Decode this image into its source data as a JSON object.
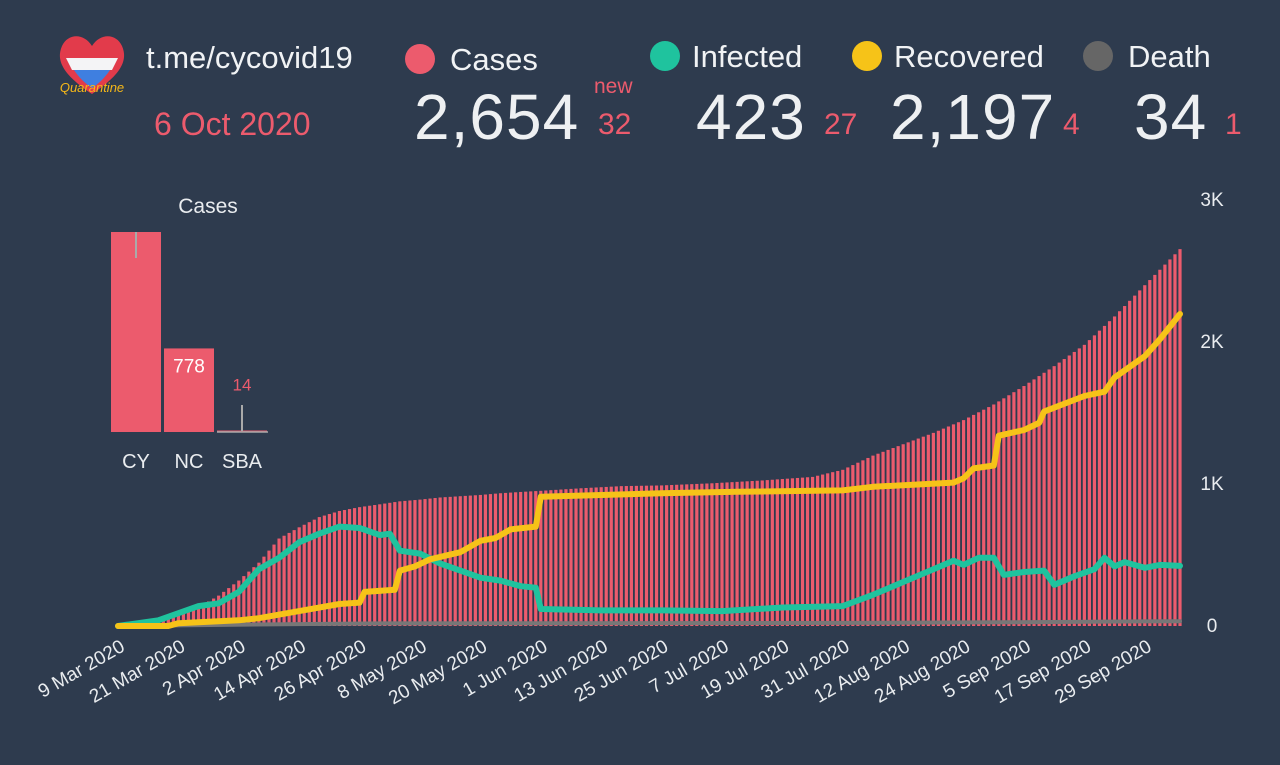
{
  "header": {
    "channel": "t.me/cycovid19",
    "date": "6 Oct 2020",
    "new_label": "new"
  },
  "stats": [
    {
      "key": "cases",
      "label": "Cases",
      "value": "2,654",
      "delta": "32",
      "color": "#ec5b6d"
    },
    {
      "key": "infected",
      "label": "Infected",
      "value": "423",
      "delta": "27",
      "color": "#1fc39e"
    },
    {
      "key": "recovered",
      "label": "Recovered",
      "value": "2,197",
      "delta": "4",
      "color": "#f6c318"
    },
    {
      "key": "death",
      "label": "Death",
      "value": "34",
      "delta": "1",
      "color": "#777777"
    }
  ],
  "colors": {
    "background": "#2e3b4e",
    "cases": "#ec5b6d",
    "infected": "#1fc39e",
    "recovered": "#f6c318",
    "death": "#777777"
  },
  "logo": {
    "icon": "heart-flag-logo",
    "text": "Quarantine"
  },
  "chart_data": [
    {
      "type": "bar",
      "title": "Cases",
      "categories": [
        "CY",
        "NC",
        "SBA"
      ],
      "values": [
        1862,
        778,
        14
      ],
      "value_labels": [
        "",
        "778",
        "14"
      ],
      "legend": "none"
    },
    {
      "type": "bar+line",
      "x_start": "9 Mar 2020",
      "x_end": "6 Oct 2020",
      "x_tick_labels": [
        "9 Mar 2020",
        "21 Mar 2020",
        "2 Apr 2020",
        "14 Apr 2020",
        "26 Apr 2020",
        "8 May 2020",
        "20 May 2020",
        "1 Jun 2020",
        "13 Jun 2020",
        "25 Jun 2020",
        "7 Jul 2020",
        "19 Jul 2020",
        "31 Jul 2020",
        "12 Aug 2020",
        "24 Aug 2020",
        "5 Sep 2020",
        "17 Sep 2020",
        "29 Sep 2020"
      ],
      "y_tick_labels": [
        "0",
        "1K",
        "2K",
        "3K"
      ],
      "ylim": [
        0,
        3000
      ],
      "y_axis_side": "right",
      "grid": false,
      "series": [
        {
          "name": "Cases",
          "render": "bars",
          "color": "#ec5b6d",
          "points": [
            [
              "2020-03-09",
              2
            ],
            [
              "2020-03-13",
              20
            ],
            [
              "2020-03-17",
              58
            ],
            [
              "2020-03-21",
              95
            ],
            [
              "2020-03-25",
              132
            ],
            [
              "2020-03-29",
              214
            ],
            [
              "2020-04-02",
              320
            ],
            [
              "2020-04-06",
              446
            ],
            [
              "2020-04-10",
              616
            ],
            [
              "2020-04-14",
              695
            ],
            [
              "2020-04-18",
              767
            ],
            [
              "2020-04-22",
              810
            ],
            [
              "2020-04-26",
              837
            ],
            [
              "2020-04-30",
              857
            ],
            [
              "2020-05-04",
              878
            ],
            [
              "2020-05-08",
              890
            ],
            [
              "2020-05-12",
              905
            ],
            [
              "2020-05-16",
              914
            ],
            [
              "2020-05-20",
              923
            ],
            [
              "2020-05-24",
              935
            ],
            [
              "2020-05-28",
              944
            ],
            [
              "2020-06-01",
              952
            ],
            [
              "2020-06-09",
              970
            ],
            [
              "2020-06-17",
              985
            ],
            [
              "2020-06-25",
              990
            ],
            [
              "2020-07-05",
              1005
            ],
            [
              "2020-07-15",
              1025
            ],
            [
              "2020-07-25",
              1050
            ],
            [
              "2020-07-31",
              1100
            ],
            [
              "2020-08-06",
              1200
            ],
            [
              "2020-08-12",
              1280
            ],
            [
              "2020-08-18",
              1360
            ],
            [
              "2020-08-24",
              1450
            ],
            [
              "2020-08-30",
              1560
            ],
            [
              "2020-09-05",
              1690
            ],
            [
              "2020-09-11",
              1830
            ],
            [
              "2020-09-17",
              1980
            ],
            [
              "2020-09-23",
              2180
            ],
            [
              "2020-09-29",
              2400
            ],
            [
              "2020-10-06",
              2654
            ]
          ]
        },
        {
          "name": "Recovered",
          "render": "line",
          "color": "#f6c318",
          "points": [
            [
              "2020-03-09",
              0
            ],
            [
              "2020-03-19",
              0
            ],
            [
              "2020-03-21",
              20
            ],
            [
              "2020-03-27",
              30
            ],
            [
              "2020-04-02",
              40
            ],
            [
              "2020-04-06",
              55
            ],
            [
              "2020-04-14",
              105
            ],
            [
              "2020-04-22",
              155
            ],
            [
              "2020-04-26",
              165
            ],
            [
              "2020-04-27",
              240
            ],
            [
              "2020-05-03",
              255
            ],
            [
              "2020-05-04",
              390
            ],
            [
              "2020-05-07",
              420
            ],
            [
              "2020-05-10",
              470
            ],
            [
              "2020-05-16",
              520
            ],
            [
              "2020-05-20",
              600
            ],
            [
              "2020-05-23",
              620
            ],
            [
              "2020-05-26",
              680
            ],
            [
              "2020-05-31",
              700
            ],
            [
              "2020-06-01",
              910
            ],
            [
              "2020-06-25",
              935
            ],
            [
              "2020-07-10",
              945
            ],
            [
              "2020-07-31",
              955
            ],
            [
              "2020-08-06",
              980
            ],
            [
              "2020-08-22",
              1010
            ],
            [
              "2020-08-24",
              1040
            ],
            [
              "2020-08-26",
              1110
            ],
            [
              "2020-08-30",
              1130
            ],
            [
              "2020-08-31",
              1340
            ],
            [
              "2020-09-05",
              1380
            ],
            [
              "2020-09-08",
              1430
            ],
            [
              "2020-09-09",
              1510
            ],
            [
              "2020-09-17",
              1620
            ],
            [
              "2020-09-21",
              1650
            ],
            [
              "2020-09-23",
              1750
            ],
            [
              "2020-09-29",
              1900
            ],
            [
              "2020-10-02",
              2020
            ],
            [
              "2020-10-06",
              2197
            ]
          ]
        },
        {
          "name": "Infected",
          "render": "line",
          "color": "#1fc39e",
          "points": [
            [
              "2020-03-09",
              0
            ],
            [
              "2020-03-17",
              40
            ],
            [
              "2020-03-21",
              90
            ],
            [
              "2020-03-25",
              140
            ],
            [
              "2020-03-29",
              160
            ],
            [
              "2020-04-02",
              240
            ],
            [
              "2020-04-06",
              400
            ],
            [
              "2020-04-10",
              480
            ],
            [
              "2020-04-14",
              590
            ],
            [
              "2020-04-18",
              650
            ],
            [
              "2020-04-22",
              700
            ],
            [
              "2020-04-26",
              690
            ],
            [
              "2020-04-30",
              640
            ],
            [
              "2020-05-02",
              650
            ],
            [
              "2020-05-04",
              530
            ],
            [
              "2020-05-08",
              510
            ],
            [
              "2020-05-12",
              440
            ],
            [
              "2020-05-16",
              390
            ],
            [
              "2020-05-20",
              340
            ],
            [
              "2020-05-24",
              320
            ],
            [
              "2020-05-28",
              280
            ],
            [
              "2020-05-31",
              270
            ],
            [
              "2020-06-01",
              120
            ],
            [
              "2020-06-13",
              110
            ],
            [
              "2020-06-25",
              110
            ],
            [
              "2020-07-07",
              105
            ],
            [
              "2020-07-19",
              130
            ],
            [
              "2020-07-31",
              140
            ],
            [
              "2020-08-06",
              220
            ],
            [
              "2020-08-12",
              310
            ],
            [
              "2020-08-18",
              400
            ],
            [
              "2020-08-22",
              460
            ],
            [
              "2020-08-24",
              430
            ],
            [
              "2020-08-27",
              480
            ],
            [
              "2020-08-30",
              480
            ],
            [
              "2020-09-01",
              360
            ],
            [
              "2020-09-05",
              380
            ],
            [
              "2020-09-09",
              390
            ],
            [
              "2020-09-11",
              290
            ],
            [
              "2020-09-15",
              350
            ],
            [
              "2020-09-19",
              400
            ],
            [
              "2020-09-21",
              480
            ],
            [
              "2020-09-23",
              420
            ],
            [
              "2020-09-25",
              450
            ],
            [
              "2020-09-29",
              410
            ],
            [
              "2020-10-02",
              430
            ],
            [
              "2020-10-06",
              423
            ]
          ]
        },
        {
          "name": "Death",
          "render": "line",
          "color": "#777777",
          "points": [
            [
              "2020-03-09",
              0
            ],
            [
              "2020-04-01",
              9
            ],
            [
              "2020-05-01",
              18
            ],
            [
              "2020-06-01",
              20
            ],
            [
              "2020-08-01",
              22
            ],
            [
              "2020-09-01",
              26
            ],
            [
              "2020-10-06",
              34
            ]
          ]
        }
      ]
    }
  ]
}
